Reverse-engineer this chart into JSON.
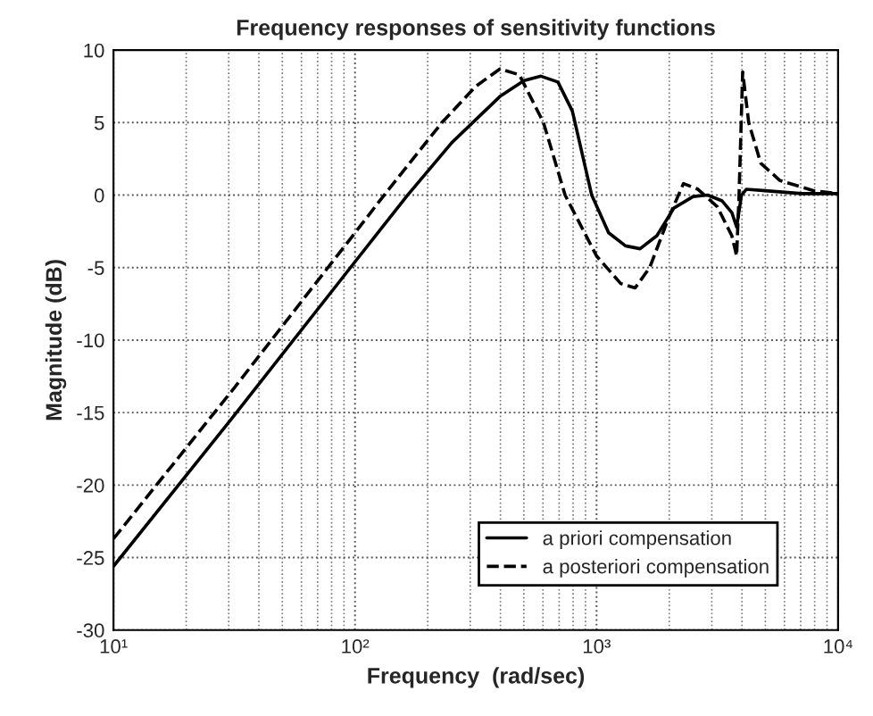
{
  "chart_data": {
    "type": "line",
    "title": "Frequency responses of sensitivity functions",
    "xlabel": "Frequency  (rad/sec)",
    "ylabel": "Magnitude (dB)",
    "log": "x",
    "xlim": [
      10,
      10000
    ],
    "xticks": [
      {
        "value": 10,
        "label": "10¹"
      },
      {
        "value": 100,
        "label": "10²"
      },
      {
        "value": 1000,
        "label": "10³"
      },
      {
        "value": 10000,
        "label": "10⁴"
      }
    ],
    "ylim": [
      -30,
      10
    ],
    "yticks": [
      -30,
      -25,
      -20,
      -15,
      -10,
      -5,
      0,
      5,
      10
    ],
    "grid": true,
    "legend": "bottom right",
    "series": [
      {
        "name": "a priori compensation",
        "color": "#000000",
        "line_style": "solid",
        "x": [
          10,
          31.6,
          100,
          165,
          251,
          398,
          501,
          589,
          692,
          794,
          955,
          1122,
          1318,
          1514,
          1778,
          2089,
          2512,
          2884,
          3311,
          3631,
          3802,
          3981,
          4169,
          5012,
          7079,
          10000
        ],
        "values": [
          -25.6,
          -15.2,
          -4.6,
          0,
          3.6,
          6.8,
          7.9,
          8.2,
          7.8,
          5.8,
          0,
          -2.6,
          -3.5,
          -3.7,
          -2.8,
          -0.9,
          -0.1,
          0,
          -0.4,
          -1.2,
          -2.2,
          0,
          0.4,
          0.3,
          0.1,
          0.1
        ]
      },
      {
        "name": "a posteriori compensation",
        "color": "#000000",
        "line_style": "dashed",
        "x": [
          10,
          31.6,
          100,
          132,
          229,
          316,
          398,
          479,
          603,
          741,
          1000,
          1259,
          1445,
          1660,
          1995,
          2291,
          2630,
          3162,
          3631,
          3802,
          3890,
          4027,
          4266,
          4786,
          5754,
          7943,
          10000
        ],
        "values": [
          -23.7,
          -13.3,
          -2.6,
          0,
          5,
          7.5,
          8.7,
          8.3,
          5,
          0,
          -4.2,
          -6.1,
          -6.4,
          -5,
          -1.5,
          0.8,
          0.4,
          -0.8,
          -2.8,
          -4.2,
          0,
          8.5,
          5,
          2.2,
          1,
          0.3,
          0.1
        ]
      }
    ]
  }
}
